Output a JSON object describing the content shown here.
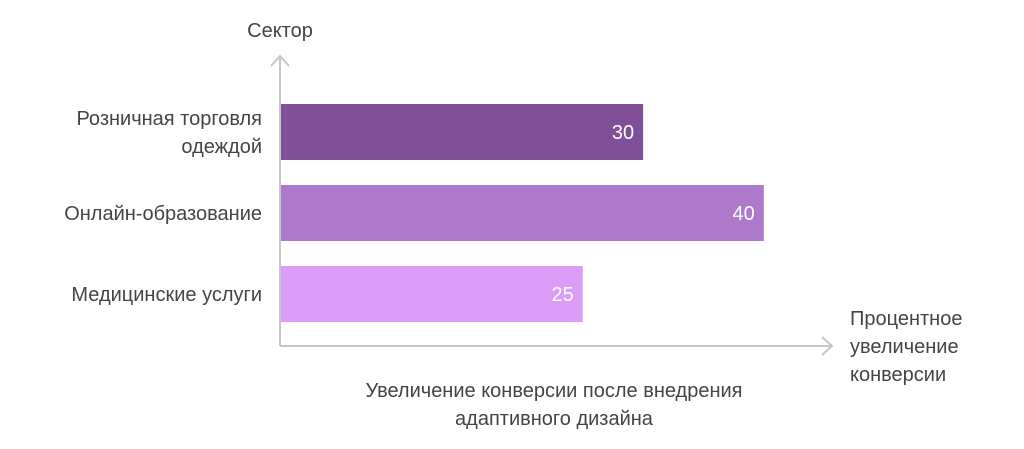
{
  "chart_data": {
    "type": "bar",
    "orientation": "horizontal",
    "categories": [
      [
        "Розничная торговля",
        "одеждой"
      ],
      [
        "Онлайн-образование"
      ],
      [
        "Медицинские услуги"
      ]
    ],
    "values": [
      30,
      40,
      25
    ],
    "value_labels": [
      "30",
      "40",
      "25"
    ],
    "colors": [
      "#7f5097",
      "#ae78cb",
      "#dc9df9"
    ],
    "ylabel": "Сектор",
    "xlabel": [
      "Процентное",
      "увеличение",
      "конверсии"
    ],
    "caption": [
      "Увеличение конверсии после внедрения",
      "адаптивного дизайна"
    ],
    "xlim": [
      0,
      40
    ],
    "grid": false,
    "legend": "none"
  }
}
